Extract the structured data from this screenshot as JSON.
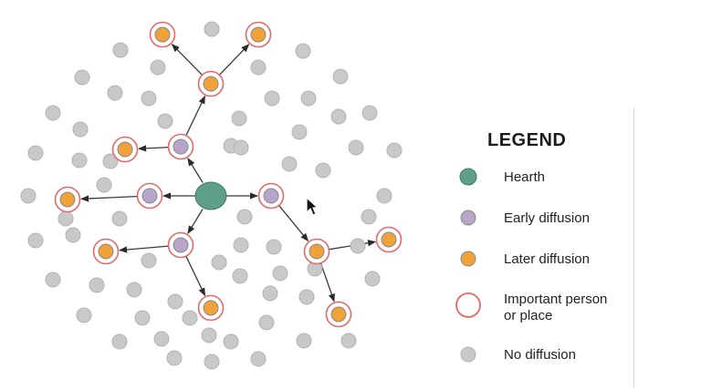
{
  "colors": {
    "hearth": "#5f9e8a",
    "early_diffusion": "#b7a6c9",
    "later_diffusion": "#f0a23a",
    "no_diffusion": "#c9c9c9",
    "important_ring": "#e26a6a"
  },
  "legend": {
    "title": "LEGEND",
    "items": [
      {
        "key": "hearth",
        "label": "Hearth"
      },
      {
        "key": "early",
        "label": "Early diffusion"
      },
      {
        "key": "later",
        "label": "Later diffusion"
      },
      {
        "key": "important",
        "label_line1": "Important person",
        "label_line2": "or place"
      },
      {
        "key": "none",
        "label": "No diffusion"
      }
    ]
  },
  "icons": [
    "mouse-pointer-icon"
  ]
}
